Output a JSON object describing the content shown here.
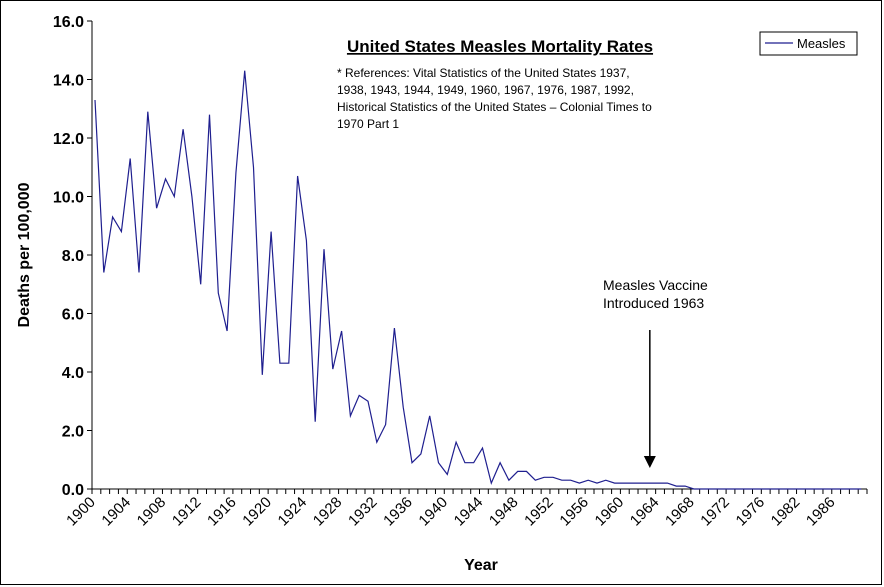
{
  "chart_data": {
    "type": "line",
    "title": "United States Measles Mortality Rates",
    "references": [
      "* References: Vital Statistics of the United States 1937,",
      "1938, 1943, 1944, 1949, 1960, 1967, 1976, 1987, 1992,",
      "Historical Statistics of the United States – Colonial Times to",
      "1970 Part 1"
    ],
    "xlabel": "Year",
    "ylabel": "Deaths per 100,000",
    "ylim": [
      0,
      16
    ],
    "yticks": [
      "0.0",
      "2.0",
      "4.0",
      "6.0",
      "8.0",
      "10.0",
      "12.0",
      "14.0",
      "16.0"
    ],
    "xlim": [
      1900,
      1987
    ],
    "xticks": [
      "1900",
      "1904",
      "1908",
      "1912",
      "1916",
      "1920",
      "1924",
      "1928",
      "1932",
      "1936",
      "1940",
      "1944",
      "1948",
      "1952",
      "1956",
      "1960",
      "1964",
      "1968",
      "1972",
      "1976",
      "1982",
      "1986"
    ],
    "legend": {
      "position": "top-right",
      "entries": [
        "Measles"
      ]
    },
    "annotation": {
      "lines": [
        "Measles Vaccine",
        "Introduced 1963"
      ],
      "x": 1963
    },
    "series": [
      {
        "name": "Measles",
        "color": "#1f1f8f",
        "x": [
          1900,
          1901,
          1902,
          1903,
          1904,
          1905,
          1906,
          1907,
          1908,
          1909,
          1910,
          1911,
          1912,
          1913,
          1914,
          1915,
          1916,
          1917,
          1918,
          1919,
          1920,
          1921,
          1922,
          1923,
          1924,
          1925,
          1926,
          1927,
          1928,
          1929,
          1930,
          1931,
          1932,
          1933,
          1934,
          1935,
          1936,
          1937,
          1938,
          1939,
          1940,
          1941,
          1942,
          1943,
          1944,
          1945,
          1946,
          1947,
          1948,
          1949,
          1950,
          1951,
          1952,
          1953,
          1954,
          1955,
          1956,
          1957,
          1958,
          1959,
          1960,
          1961,
          1962,
          1963,
          1964,
          1965,
          1966,
          1967,
          1968,
          1969,
          1970,
          1971,
          1972,
          1973,
          1974,
          1975,
          1976,
          1977,
          1978,
          1979,
          1980,
          1981,
          1982,
          1983,
          1984,
          1985,
          1986,
          1987
        ],
        "values": [
          13.3,
          7.4,
          9.3,
          8.8,
          11.3,
          7.4,
          12.9,
          9.6,
          10.6,
          10.0,
          12.3,
          10.0,
          7.0,
          12.8,
          6.7,
          5.4,
          10.8,
          14.3,
          11.0,
          3.9,
          8.8,
          4.3,
          4.3,
          10.7,
          8.5,
          2.3,
          8.2,
          4.1,
          5.4,
          2.5,
          3.2,
          3.0,
          1.6,
          2.2,
          5.5,
          2.8,
          0.9,
          1.2,
          2.5,
          0.9,
          0.5,
          1.6,
          0.9,
          0.9,
          1.4,
          0.2,
          0.9,
          0.3,
          0.6,
          0.6,
          0.3,
          0.4,
          0.4,
          0.3,
          0.3,
          0.2,
          0.3,
          0.2,
          0.3,
          0.2,
          0.2,
          0.2,
          0.2,
          0.2,
          0.2,
          0.2,
          0.1,
          0.1,
          0.0,
          0.0,
          0.0,
          0.0,
          0.0,
          0.0,
          0.0,
          0.0,
          0.0,
          0.0,
          0.0,
          0.0,
          0.0,
          0.0,
          0.0,
          0.0,
          0.0,
          0.0,
          0.0,
          0.0
        ]
      }
    ]
  }
}
